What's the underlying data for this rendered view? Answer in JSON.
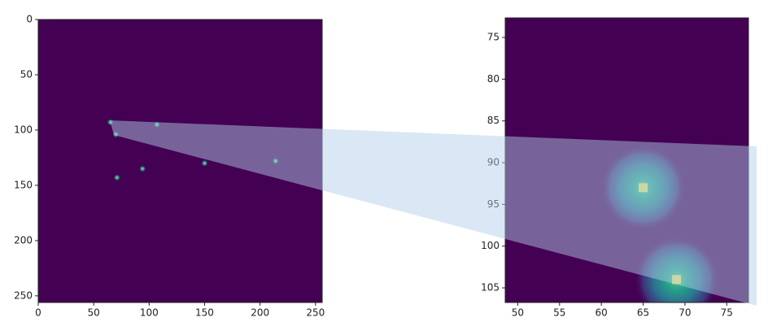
{
  "chart_data": [
    {
      "type": "image",
      "background": "#440154",
      "x": [
        65,
        70,
        107,
        150,
        214,
        71,
        94
      ],
      "y": [
        93,
        104,
        95,
        130,
        128,
        143,
        135
      ],
      "xlim": [
        0,
        256
      ],
      "ylim": [
        256,
        0
      ],
      "xticks": [
        0,
        50,
        100,
        150,
        200,
        250
      ],
      "yticks": [
        0,
        50,
        100,
        150,
        200,
        250
      ]
    },
    {
      "type": "image",
      "background": "#440154",
      "x": [
        65,
        69
      ],
      "y": [
        93,
        104
      ],
      "xlim": [
        48.5,
        77.6
      ],
      "ylim": [
        106.75,
        72.66
      ],
      "xticks": [
        50,
        55,
        60,
        65,
        70,
        75
      ],
      "yticks": [
        75,
        80,
        85,
        90,
        95,
        100,
        105
      ]
    }
  ]
}
